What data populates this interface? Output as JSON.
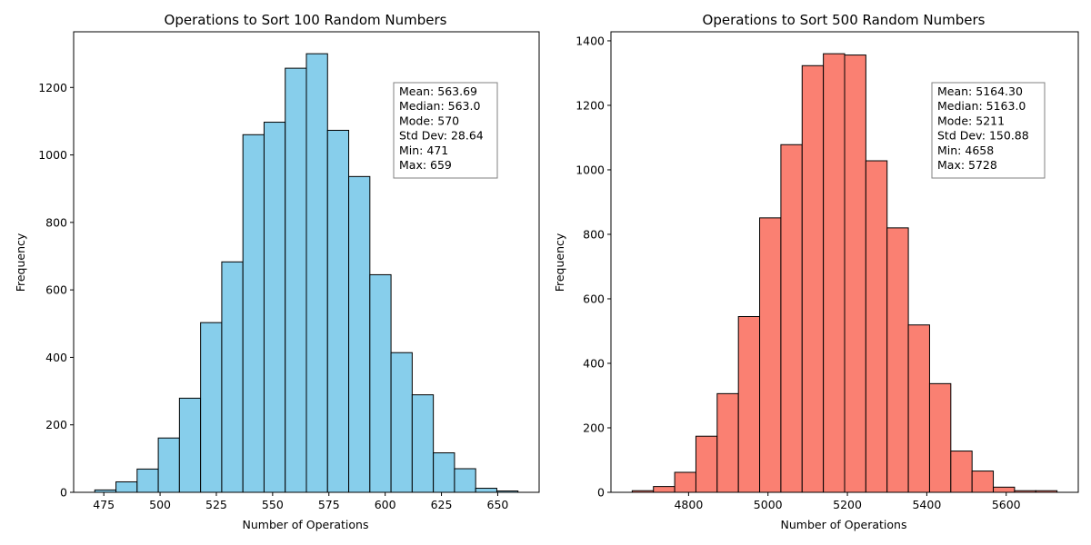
{
  "chart_data": [
    {
      "type": "bar",
      "title": "Operations to Sort 100 Random Numbers",
      "xlabel": "Number of Operations",
      "ylabel": "Frequency",
      "color": "#87ceeb",
      "edge_color": "#000000",
      "xlim": [
        461.6,
        668.4
      ],
      "ylim": [
        0,
        1365
      ],
      "xticks": [
        475,
        500,
        525,
        550,
        575,
        600,
        625,
        650
      ],
      "yticks": [
        0,
        200,
        400,
        600,
        800,
        1000,
        1200
      ],
      "bin_start": 471,
      "bin_width": 9.4,
      "values": [
        7,
        31,
        69,
        161,
        279,
        503,
        683,
        1060,
        1097,
        1257,
        1300,
        1073,
        936,
        645,
        414,
        289,
        117,
        70,
        12,
        4
      ],
      "stats_lines": [
        "Mean: 563.69",
        "Median: 563.0",
        "Mode: 570",
        "Std Dev: 28.64",
        "Min: 471",
        "Max: 659"
      ],
      "grid": false
    },
    {
      "type": "bar",
      "title": "Operations to Sort 500 Random Numbers",
      "xlabel": "Number of Operations",
      "ylabel": "Frequency",
      "color": "#fa8072",
      "edge_color": "#000000",
      "xlim": [
        4604.5,
        5781.5
      ],
      "ylim": [
        0,
        1428
      ],
      "xticks": [
        4800,
        5000,
        5200,
        5400,
        5600
      ],
      "yticks": [
        0,
        200,
        400,
        600,
        800,
        1000,
        1200,
        1400
      ],
      "bin_start": 4658,
      "bin_width": 53.5,
      "values": [
        5,
        18,
        62,
        174,
        306,
        545,
        851,
        1078,
        1323,
        1360,
        1356,
        1028,
        820,
        519,
        337,
        128,
        66,
        16,
        5,
        5
      ],
      "stats_lines": [
        "Mean: 5164.30",
        "Median: 5163.0",
        "Mode: 5211",
        "Std Dev: 150.88",
        "Min: 4658",
        "Max: 5728"
      ],
      "grid": false
    }
  ]
}
